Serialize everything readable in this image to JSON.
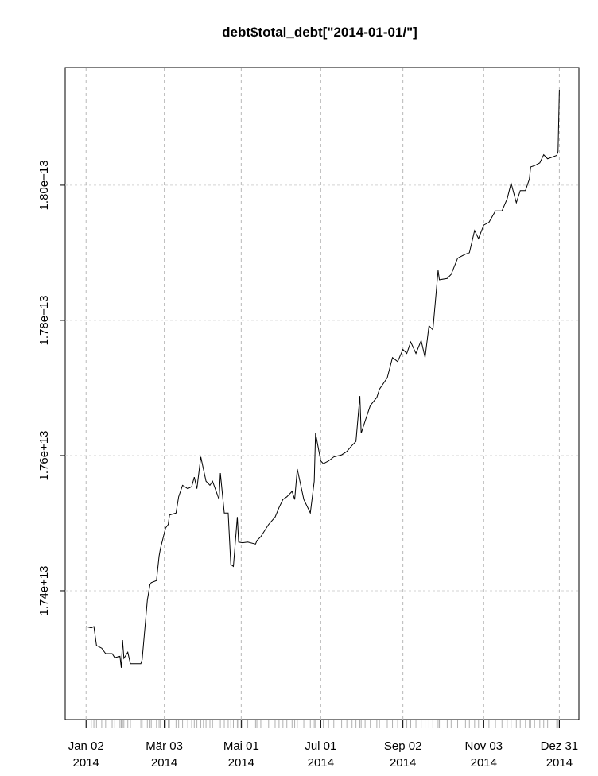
{
  "chart_data": {
    "type": "line",
    "title": "debt$total_debt[\"2014-01-01/\"]",
    "x": [
      "2014-01-02",
      "2014-01-06",
      "2014-01-08",
      "2014-01-10",
      "2014-01-14",
      "2014-01-17",
      "2014-01-22",
      "2014-01-24",
      "2014-01-28",
      "2014-01-29",
      "2014-01-30",
      "2014-01-31",
      "2014-02-03",
      "2014-02-05",
      "2014-02-13",
      "2014-02-14",
      "2014-02-18",
      "2014-02-20",
      "2014-02-21",
      "2014-02-25",
      "2014-02-27",
      "2014-02-28",
      "2014-03-04",
      "2014-03-06",
      "2014-03-07",
      "2014-03-12",
      "2014-03-14",
      "2014-03-17",
      "2014-03-21",
      "2014-03-24",
      "2014-03-26",
      "2014-03-28",
      "2014-03-31",
      "2014-04-02",
      "2014-04-04",
      "2014-04-07",
      "2014-04-09",
      "2014-04-14",
      "2014-04-15",
      "2014-04-18",
      "2014-04-21",
      "2014-04-23",
      "2014-04-25",
      "2014-04-28",
      "2014-04-29",
      "2014-05-02",
      "2014-05-06",
      "2014-05-12",
      "2014-05-13",
      "2014-05-16",
      "2014-05-22",
      "2014-05-27",
      "2014-05-30",
      "2014-06-02",
      "2014-06-05",
      "2014-06-09",
      "2014-06-11",
      "2014-06-13",
      "2014-06-18",
      "2014-06-23",
      "2014-06-26",
      "2014-06-27",
      "2014-07-01",
      "2014-07-03",
      "2014-07-07",
      "2014-07-11",
      "2014-07-17",
      "2014-07-21",
      "2014-07-25",
      "2014-07-28",
      "2014-07-31",
      "2014-08-01",
      "2014-08-04",
      "2014-08-08",
      "2014-08-13",
      "2014-08-15",
      "2014-08-21",
      "2014-08-25",
      "2014-08-29",
      "2014-09-02",
      "2014-09-05",
      "2014-09-08",
      "2014-09-12",
      "2014-09-16",
      "2014-09-19",
      "2014-09-22",
      "2014-09-25",
      "2014-09-29",
      "2014-09-30",
      "2014-10-06",
      "2014-10-09",
      "2014-10-14",
      "2014-10-20",
      "2014-10-23",
      "2014-10-27",
      "2014-10-30",
      "2014-11-03",
      "2014-11-07",
      "2014-11-12",
      "2014-11-17",
      "2014-11-21",
      "2014-11-24",
      "2014-11-28",
      "2014-12-01",
      "2014-12-05",
      "2014-12-08",
      "2014-12-09",
      "2014-12-12",
      "2014-12-16",
      "2014-12-19",
      "2014-12-22",
      "2014-12-29",
      "2014-12-30",
      "2014-12-31"
    ],
    "values": [
      17347000000000,
      17345000000000,
      17347000000000,
      17319000000000,
      17315000000000,
      17307000000000,
      17307000000000,
      17301000000000,
      17303000000000,
      17286000000000,
      17327000000000,
      17300000000000,
      17309000000000,
      17292000000000,
      17292000000000,
      17298000000000,
      17386000000000,
      17409000000000,
      17412000000000,
      17415000000000,
      17451000000000,
      17462000000000,
      17493000000000,
      17498000000000,
      17512000000000,
      17515000000000,
      17539000000000,
      17556000000000,
      17551000000000,
      17554000000000,
      17568000000000,
      17551000000000,
      17598000000000,
      17580000000000,
      17562000000000,
      17556000000000,
      17562000000000,
      17535000000000,
      17574000000000,
      17515000000000,
      17515000000000,
      17439000000000,
      17436000000000,
      17509000000000,
      17472000000000,
      17471000000000,
      17472000000000,
      17469000000000,
      17474000000000,
      17480000000000,
      17498000000000,
      17509000000000,
      17523000000000,
      17535000000000,
      17539000000000,
      17547000000000,
      17535000000000,
      17580000000000,
      17535000000000,
      17515000000000,
      17562000000000,
      17633000000000,
      17592000000000,
      17588000000000,
      17592000000000,
      17598000000000,
      17601000000000,
      17606000000000,
      17615000000000,
      17621000000000,
      17688000000000,
      17633000000000,
      17651000000000,
      17674000000000,
      17686000000000,
      17698000000000,
      17715000000000,
      17745000000000,
      17739000000000,
      17757000000000,
      17751000000000,
      17768000000000,
      17751000000000,
      17770000000000,
      17745000000000,
      17792000000000,
      17786000000000,
      17874000000000,
      17860000000000,
      17862000000000,
      17868000000000,
      17892000000000,
      17898000000000,
      17900000000000,
      17933000000000,
      17921000000000,
      17941000000000,
      17945000000000,
      17962000000000,
      17962000000000,
      17980000000000,
      18003000000000,
      17974000000000,
      17992000000000,
      17992000000000,
      18009000000000,
      18027000000000,
      18029000000000,
      18033000000000,
      18045000000000,
      18039000000000,
      18044000000000,
      18050000000000,
      18141000000000
    ],
    "color": "#000000",
    "xlim": [
      "2013-12-17",
      "2015-01-15"
    ],
    "xticks": [
      {
        "value": "2014-01-02",
        "label": "Jan 02\n2014"
      },
      {
        "value": "2014-03-03",
        "label": "Mär 03\n2014"
      },
      {
        "value": "2014-05-01",
        "label": "Mai 01\n2014"
      },
      {
        "value": "2014-07-01",
        "label": "Jul 01\n2014"
      },
      {
        "value": "2014-09-02",
        "label": "Sep 02\n2014"
      },
      {
        "value": "2014-11-03",
        "label": "Nov 03\n2014"
      },
      {
        "value": "2014-12-31",
        "label": "Dez 31\n2014"
      }
    ],
    "ylim": [
      17209400000000,
      18174000000000
    ],
    "yticks": [
      {
        "value": 17400000000000,
        "label": "1.74e+13"
      },
      {
        "value": 17600000000000,
        "label": "1.76e+13"
      },
      {
        "value": 17800000000000,
        "label": "1.78e+13"
      },
      {
        "value": 18000000000000,
        "label": "1.80e+13"
      }
    ],
    "grid": true
  }
}
